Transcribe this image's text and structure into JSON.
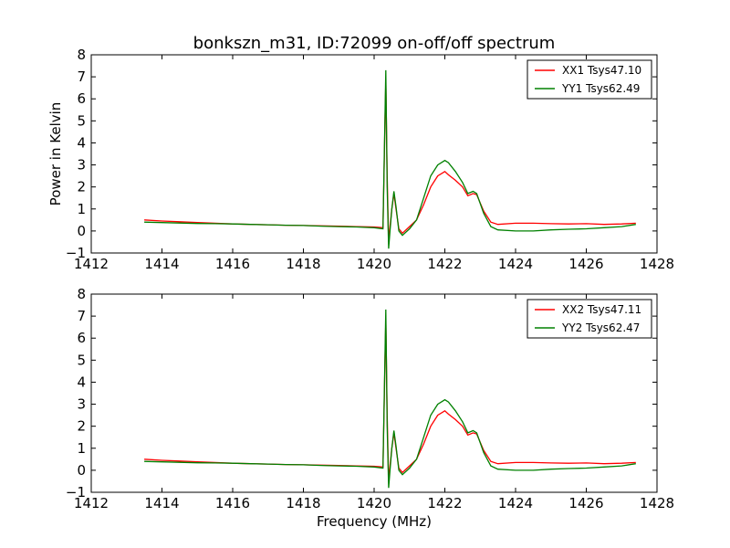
{
  "title": "bonkszn_m31, ID:72099 on-off/off spectrum",
  "colors": {
    "xx": "#ff0000",
    "yy": "#008000",
    "axes": "#000000"
  },
  "chart_data": [
    {
      "type": "line",
      "ylabel": "Power in Kelvin",
      "xlabel": "",
      "xlim": [
        1412,
        1428
      ],
      "ylim": [
        -1,
        8
      ],
      "xticks": [
        "1412",
        "1414",
        "1416",
        "1418",
        "1420",
        "1422",
        "1424",
        "1426",
        "1428"
      ],
      "yticks": [
        "−1",
        "0",
        "1",
        "2",
        "3",
        "4",
        "5",
        "6",
        "7",
        "8"
      ],
      "legend_position": "top-right",
      "grid": false,
      "series": [
        {
          "name": "XX1 Tsys47.10",
          "color": "#ff0000",
          "x": [
            1413.5,
            1414.0,
            1414.5,
            1415.0,
            1415.5,
            1416.0,
            1416.5,
            1417.0,
            1417.5,
            1418.0,
            1418.5,
            1419.0,
            1419.5,
            1420.0,
            1420.25,
            1420.33,
            1420.37,
            1420.41,
            1420.45,
            1420.5,
            1420.56,
            1420.62,
            1420.7,
            1420.8,
            1421.0,
            1421.2,
            1421.4,
            1421.6,
            1421.8,
            1422.0,
            1422.1,
            1422.3,
            1422.5,
            1422.65,
            1422.8,
            1422.9,
            1423.1,
            1423.3,
            1423.5,
            1424.0,
            1424.5,
            1425.0,
            1425.5,
            1426.0,
            1426.5,
            1427.0,
            1427.4
          ],
          "y": [
            0.5,
            0.45,
            0.42,
            0.38,
            0.35,
            0.32,
            0.3,
            0.28,
            0.26,
            0.25,
            0.23,
            0.22,
            0.2,
            0.18,
            0.15,
            6.8,
            2.5,
            -0.5,
            0.2,
            1.0,
            1.7,
            1.0,
            0.1,
            -0.1,
            0.2,
            0.5,
            1.2,
            2.0,
            2.5,
            2.7,
            2.55,
            2.3,
            2.0,
            1.6,
            1.7,
            1.65,
            0.9,
            0.4,
            0.3,
            0.35,
            0.35,
            0.33,
            0.32,
            0.33,
            0.3,
            0.32,
            0.35
          ]
        },
        {
          "name": "YY1 Tsys62.49",
          "color": "#008000",
          "x": [
            1413.5,
            1414.0,
            1414.5,
            1415.0,
            1415.5,
            1416.0,
            1416.5,
            1417.0,
            1417.5,
            1418.0,
            1418.5,
            1419.0,
            1419.5,
            1420.0,
            1420.25,
            1420.33,
            1420.37,
            1420.41,
            1420.45,
            1420.5,
            1420.56,
            1420.62,
            1420.7,
            1420.8,
            1421.0,
            1421.2,
            1421.4,
            1421.6,
            1421.8,
            1422.0,
            1422.1,
            1422.3,
            1422.5,
            1422.65,
            1422.8,
            1422.9,
            1423.1,
            1423.3,
            1423.5,
            1424.0,
            1424.5,
            1425.0,
            1425.5,
            1426.0,
            1426.5,
            1427.0,
            1427.4
          ],
          "y": [
            0.4,
            0.38,
            0.36,
            0.34,
            0.33,
            0.32,
            0.3,
            0.28,
            0.26,
            0.25,
            0.22,
            0.2,
            0.18,
            0.15,
            0.1,
            7.3,
            2.0,
            -0.8,
            0.0,
            1.0,
            1.8,
            1.1,
            0.0,
            -0.2,
            0.1,
            0.5,
            1.5,
            2.5,
            3.0,
            3.2,
            3.1,
            2.7,
            2.2,
            1.7,
            1.8,
            1.7,
            0.8,
            0.2,
            0.05,
            0.0,
            0.0,
            0.05,
            0.08,
            0.1,
            0.15,
            0.2,
            0.3
          ]
        }
      ]
    },
    {
      "type": "line",
      "ylabel": "",
      "xlabel": "Frequency (MHz)",
      "xlim": [
        1412,
        1428
      ],
      "ylim": [
        -1,
        8
      ],
      "xticks": [
        "1412",
        "1414",
        "1416",
        "1418",
        "1420",
        "1422",
        "1424",
        "1426",
        "1428"
      ],
      "yticks": [
        "−1",
        "0",
        "1",
        "2",
        "3",
        "4",
        "5",
        "6",
        "7",
        "8"
      ],
      "legend_position": "top-right",
      "grid": false,
      "series": [
        {
          "name": "XX2 Tsys47.11",
          "color": "#ff0000",
          "x": [
            1413.5,
            1414.0,
            1414.5,
            1415.0,
            1415.5,
            1416.0,
            1416.5,
            1417.0,
            1417.5,
            1418.0,
            1418.5,
            1419.0,
            1419.5,
            1420.0,
            1420.25,
            1420.33,
            1420.37,
            1420.41,
            1420.45,
            1420.5,
            1420.56,
            1420.62,
            1420.7,
            1420.8,
            1421.0,
            1421.2,
            1421.4,
            1421.6,
            1421.8,
            1422.0,
            1422.1,
            1422.3,
            1422.5,
            1422.65,
            1422.8,
            1422.9,
            1423.1,
            1423.3,
            1423.5,
            1424.0,
            1424.5,
            1425.0,
            1425.5,
            1426.0,
            1426.5,
            1427.0,
            1427.4
          ],
          "y": [
            0.5,
            0.45,
            0.42,
            0.38,
            0.35,
            0.32,
            0.3,
            0.28,
            0.26,
            0.25,
            0.23,
            0.22,
            0.2,
            0.18,
            0.15,
            6.8,
            2.5,
            -0.5,
            0.2,
            1.0,
            1.7,
            1.0,
            0.1,
            -0.1,
            0.2,
            0.5,
            1.2,
            2.0,
            2.5,
            2.7,
            2.55,
            2.3,
            2.0,
            1.6,
            1.7,
            1.65,
            0.9,
            0.4,
            0.3,
            0.35,
            0.35,
            0.33,
            0.32,
            0.33,
            0.3,
            0.32,
            0.35
          ]
        },
        {
          "name": "YY2 Tsys62.47",
          "color": "#008000",
          "x": [
            1413.5,
            1414.0,
            1414.5,
            1415.0,
            1415.5,
            1416.0,
            1416.5,
            1417.0,
            1417.5,
            1418.0,
            1418.5,
            1419.0,
            1419.5,
            1420.0,
            1420.25,
            1420.33,
            1420.37,
            1420.41,
            1420.45,
            1420.5,
            1420.56,
            1420.62,
            1420.7,
            1420.8,
            1421.0,
            1421.2,
            1421.4,
            1421.6,
            1421.8,
            1422.0,
            1422.1,
            1422.3,
            1422.5,
            1422.65,
            1422.8,
            1422.9,
            1423.1,
            1423.3,
            1423.5,
            1424.0,
            1424.5,
            1425.0,
            1425.5,
            1426.0,
            1426.5,
            1427.0,
            1427.4
          ],
          "y": [
            0.4,
            0.38,
            0.36,
            0.34,
            0.33,
            0.32,
            0.3,
            0.28,
            0.26,
            0.25,
            0.22,
            0.2,
            0.18,
            0.15,
            0.1,
            7.3,
            2.0,
            -0.8,
            0.0,
            1.0,
            1.8,
            1.1,
            0.0,
            -0.2,
            0.1,
            0.5,
            1.5,
            2.5,
            3.0,
            3.2,
            3.1,
            2.7,
            2.2,
            1.7,
            1.8,
            1.7,
            0.8,
            0.2,
            0.05,
            0.0,
            0.0,
            0.05,
            0.08,
            0.1,
            0.15,
            0.2,
            0.3
          ]
        }
      ]
    }
  ]
}
